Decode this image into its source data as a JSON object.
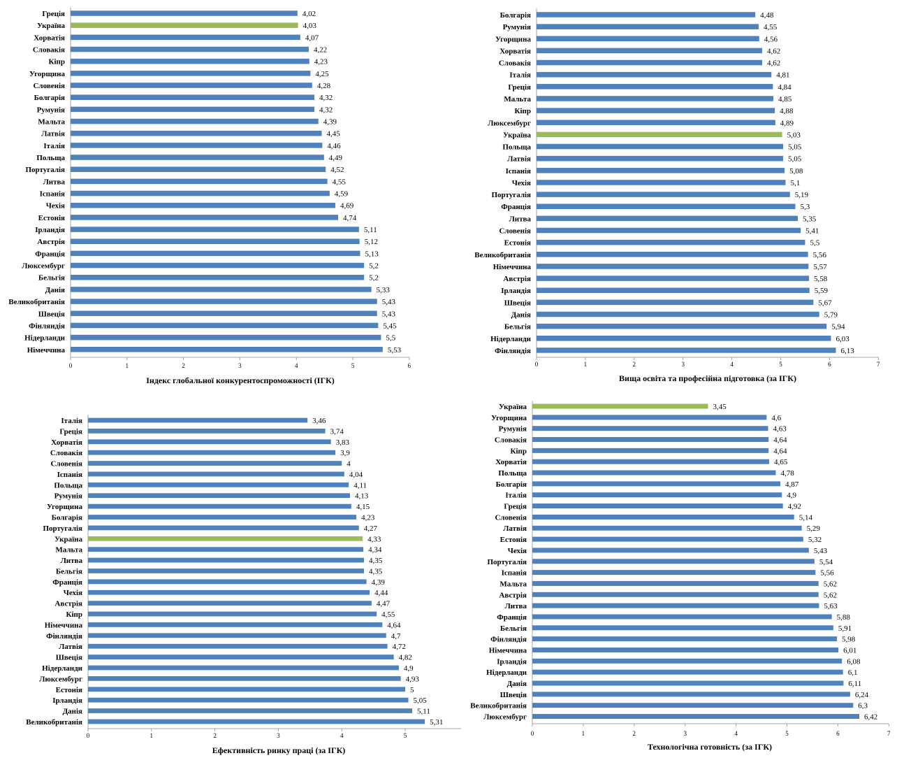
{
  "colors": {
    "bar": "#4f81bd",
    "highlight": "#9bbb59",
    "axis": "#a6a6a6"
  },
  "chart_data": [
    {
      "type": "bar",
      "orientation": "horizontal",
      "xlabel": "Індекс глобальної конкурентоспроможності (ІГК)",
      "xlim": [
        0,
        6
      ],
      "ticks": [
        "0",
        "1",
        "2",
        "3",
        "4",
        "5",
        "6"
      ],
      "highlight": "Україна",
      "categories": [
        "Греція",
        "Україна",
        "Хорватія",
        "Словакія",
        "Кіпр",
        "Угорщина",
        "Словенія",
        "Болгарія",
        "Румунія",
        "Мальта",
        "Латвія",
        "Італія",
        "Польща",
        "Португалія",
        "Литва",
        "Іспанія",
        "Чехія",
        "Естонія",
        "Ірландія",
        "Австрія",
        "Франція",
        "Люксембург",
        "Бельгія",
        "Данія",
        "Великобританія",
        "Швеція",
        "Фінляндія",
        "Нідерланди",
        "Німеччина"
      ],
      "values": [
        4.02,
        4.03,
        4.07,
        4.22,
        4.23,
        4.25,
        4.28,
        4.32,
        4.32,
        4.39,
        4.45,
        4.46,
        4.49,
        4.52,
        4.55,
        4.59,
        4.69,
        4.74,
        5.11,
        5.12,
        5.13,
        5.2,
        5.2,
        5.33,
        5.43,
        5.43,
        5.45,
        5.5,
        5.53
      ],
      "labels": [
        "4,02",
        "4,03",
        "4,07",
        "4,22",
        "4,23",
        "4,25",
        "4,28",
        "4,32",
        "4,32",
        "4,39",
        "4,45",
        "4,46",
        "4,49",
        "4,52",
        "4,55",
        "4,59",
        "4,69",
        "4,74",
        "5,11",
        "5,12",
        "5,13",
        "5,2",
        "5,2",
        "5,33",
        "5,43",
        "5,43",
        "5,45",
        "5,5",
        "5,53"
      ]
    },
    {
      "type": "bar",
      "orientation": "horizontal",
      "xlabel": "Вища освіта та професійна підготовка (за ІГК)",
      "xlim": [
        0,
        7
      ],
      "ticks": [
        "0",
        "1",
        "2",
        "3",
        "4",
        "5",
        "6",
        "7"
      ],
      "highlight": "Україна",
      "categories": [
        "Болгарія",
        "Румунія",
        "Угорщина",
        "Хорватія",
        "Словакія",
        "Італія",
        "Греція",
        "Мальта",
        "Кіпр",
        "Люксембург",
        "Україна",
        "Польща",
        "Латвія",
        "Іспанія",
        "Чехія",
        "Португалія",
        "Франція",
        "Литва",
        "Словенія",
        "Естонія",
        "Великобританія",
        "Німеччина",
        "Австрія",
        "Ірландія",
        "Швеція",
        "Данія",
        "Бельгія",
        "Нідерланди",
        "Фінляндія"
      ],
      "values": [
        4.48,
        4.55,
        4.56,
        4.62,
        4.62,
        4.81,
        4.84,
        4.85,
        4.88,
        4.89,
        5.03,
        5.05,
        5.05,
        5.08,
        5.1,
        5.19,
        5.3,
        5.35,
        5.41,
        5.5,
        5.56,
        5.57,
        5.58,
        5.59,
        5.67,
        5.79,
        5.94,
        6.03,
        6.13
      ],
      "labels": [
        "4,48",
        "4,55",
        "4,56",
        "4,62",
        "4,62",
        "4,81",
        "4,84",
        "4,85",
        "4,88",
        "4,89",
        "5,03",
        "5,05",
        "5,05",
        "5,08",
        "5,1",
        "5,19",
        "5,3",
        "5,35",
        "5,41",
        "5,5",
        "5,56",
        "5,57",
        "5,58",
        "5,59",
        "5,67",
        "5,79",
        "5,94",
        "6,03",
        "6,13"
      ]
    },
    {
      "type": "bar",
      "orientation": "horizontal",
      "xlabel": "Ефективність ринку праці (за ІГК)",
      "xlim": [
        0,
        6
      ],
      "ticks": [
        "0",
        "1",
        "2",
        "3",
        "4",
        "5"
      ],
      "highlight": "Україна",
      "categories": [
        "Італія",
        "Греція",
        "Хорватія",
        "Словакія",
        "Словенія",
        "Іспанія",
        "Польща",
        "Румунія",
        "Угорщина",
        "Болгарія",
        "Португалія",
        "Україна",
        "Мальта",
        "Литва",
        "Бельгія",
        "Франція",
        "Чехія",
        "Австрія",
        "Кіпр",
        "Німеччина",
        "Фінляндія",
        "Латвія",
        "Швеція",
        "Нідерланди",
        "Люксембург",
        "Естонія",
        "Ірландія",
        "Данія",
        "Великобританія"
      ],
      "values": [
        3.46,
        3.74,
        3.83,
        3.9,
        4,
        4.04,
        4.11,
        4.13,
        4.15,
        4.23,
        4.27,
        4.33,
        4.34,
        4.35,
        4.35,
        4.39,
        4.44,
        4.47,
        4.55,
        4.64,
        4.7,
        4.72,
        4.82,
        4.9,
        4.93,
        5,
        5.05,
        5.11,
        5.31
      ],
      "labels": [
        "3,46",
        "3,74",
        "3,83",
        "3,9",
        "4",
        "4,04",
        "4,11",
        "4,13",
        "4,15",
        "4,23",
        "4,27",
        "4,33",
        "4,34",
        "4,35",
        "4,35",
        "4,39",
        "4,44",
        "4,47",
        "4,55",
        "4,64",
        "4,7",
        "4,72",
        "4,82",
        "4,9",
        "4,93",
        "5",
        "5,05",
        "5,11",
        "5,31"
      ]
    },
    {
      "type": "bar",
      "orientation": "horizontal",
      "xlabel": "Технологічна готовність (за ІГК)",
      "xlim": [
        0,
        7
      ],
      "ticks": [
        "0",
        "1",
        "2",
        "3",
        "4",
        "5",
        "6",
        "7"
      ],
      "highlight": "Україна",
      "categories": [
        "Україна",
        "Угорщина",
        "Румунія",
        "Словакія",
        "Кіпр",
        "Хорватія",
        "Польща",
        "Болгарія",
        "Італія",
        "Греція",
        "Словенія",
        "Латвія",
        "Естонія",
        "Чехія",
        "Португалія",
        "Іспанія",
        "Мальта",
        "Австрія",
        "Литва",
        "Франція",
        "Бельгія",
        "Фінляндія",
        "Німеччина",
        "Ірландія",
        "Нідерланди",
        "Данія",
        "Швеція",
        "Великобританія",
        "Люксембург"
      ],
      "values": [
        3.45,
        4.6,
        4.63,
        4.64,
        4.64,
        4.65,
        4.78,
        4.87,
        4.9,
        4.92,
        5.14,
        5.29,
        5.32,
        5.43,
        5.54,
        5.56,
        5.62,
        5.62,
        5.63,
        5.88,
        5.91,
        5.98,
        6.01,
        6.08,
        6.1,
        6.11,
        6.24,
        6.3,
        6.42
      ],
      "labels": [
        "3,45",
        "4,6",
        "4,63",
        "4,64",
        "4,64",
        "4,65",
        "4,78",
        "4,87",
        "4,9",
        "4,92",
        "5,14",
        "5,29",
        "5,32",
        "5,43",
        "5,54",
        "5,56",
        "5,62",
        "5,62",
        "5,63",
        "5,88",
        "5,91",
        "5,98",
        "6,01",
        "6,08",
        "6,1",
        "6,11",
        "6,24",
        "6,3",
        "6,42"
      ]
    }
  ]
}
